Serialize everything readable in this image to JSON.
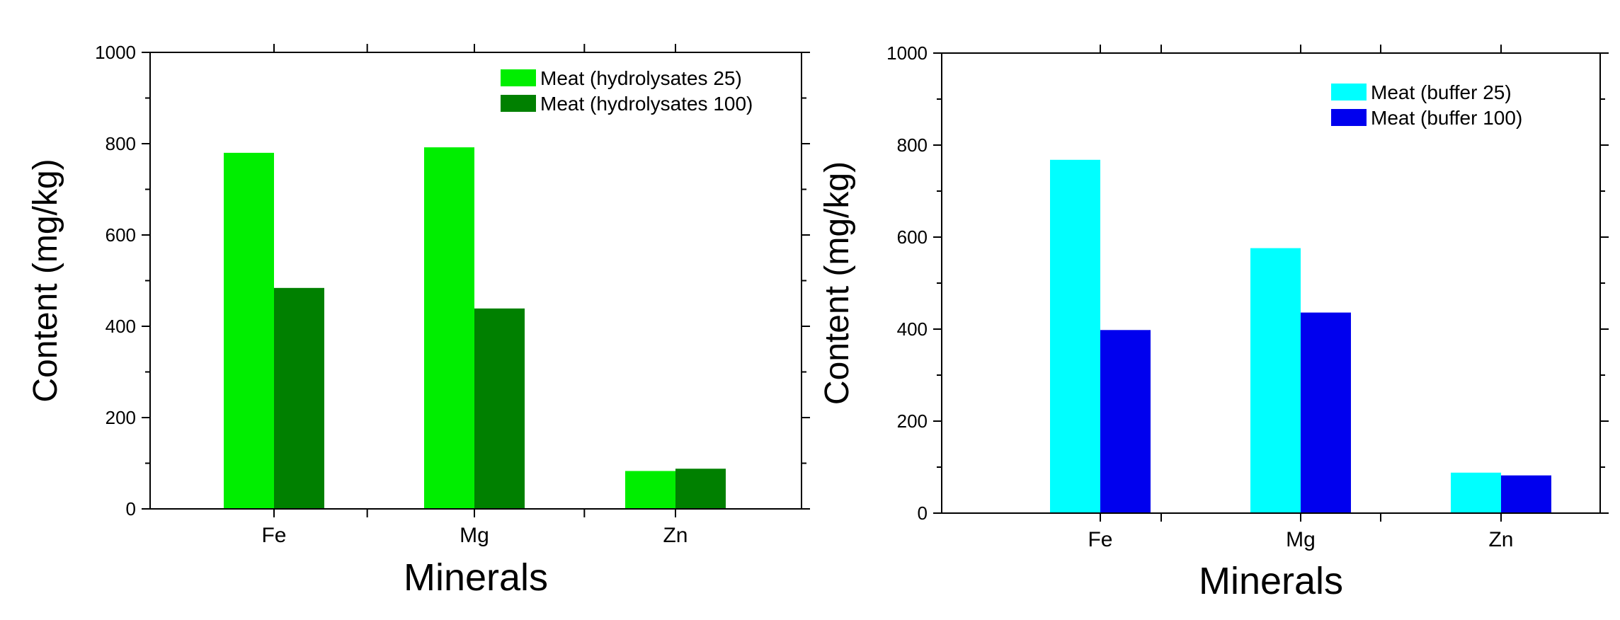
{
  "chart_data": [
    {
      "type": "bar",
      "title": "",
      "xlabel": "Minerals",
      "ylabel": "Content (mg/kg)",
      "categories": [
        "Fe",
        "Mg",
        "Zn"
      ],
      "ylim": [
        0,
        1000
      ],
      "yticks": [
        "0",
        "200",
        "400",
        "600",
        "800",
        "1000"
      ],
      "grid": false,
      "legend_position": "top-right",
      "series": [
        {
          "name": "Meat (hydrolysates 25)",
          "color": "#00ee00",
          "values": [
            780,
            792,
            83
          ]
        },
        {
          "name": "Meat (hydrolysates 100)",
          "color": "#008000",
          "values": [
            484,
            439,
            88
          ]
        }
      ]
    },
    {
      "type": "bar",
      "title": "",
      "xlabel": "Minerals",
      "ylabel": "Content (mg/kg)",
      "categories": [
        "Fe",
        "Mg",
        "Zn"
      ],
      "ylim": [
        0,
        1000
      ],
      "yticks": [
        "0",
        "200",
        "400",
        "600",
        "800",
        "1000"
      ],
      "grid": false,
      "legend_position": "top-right",
      "series": [
        {
          "name": "Meat (buffer 25)",
          "color": "#00ffff",
          "values": [
            768,
            576,
            88
          ]
        },
        {
          "name": "Meat (buffer 100)",
          "color": "#0000ee",
          "values": [
            398,
            436,
            82
          ]
        }
      ]
    }
  ]
}
